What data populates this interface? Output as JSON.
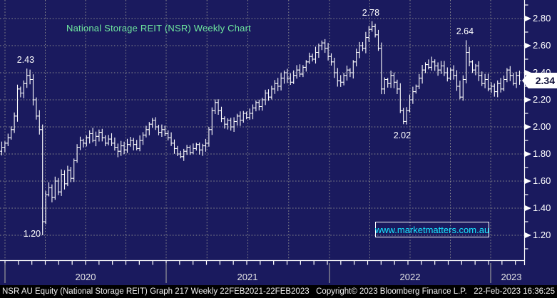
{
  "colors": {
    "background": "#1a1a5e",
    "grid": "#8f8f8f",
    "bars": "#ffffff",
    "title_green": "#6fe89f",
    "watermark_cyan": "#17e7ff",
    "axis_text": "#ffffff",
    "price_tag_bg": "#ffffff",
    "status_bar_bg": "#000000"
  },
  "watermark": {
    "text": "www.marketmatters.com.au"
  },
  "last_price_label": "2.34",
  "y_axis": {
    "major_labels": [
      "2.80",
      "2.60",
      "2.40",
      "2.20",
      "2.00",
      "1.80",
      "1.60",
      "1.40",
      "1.20"
    ]
  },
  "x_axis": {
    "year_labels": [
      "2020",
      "2021",
      "2022",
      "2023"
    ]
  },
  "status_bar": {
    "left": "NSR AU Equity (National Storage REIT) Graph 217  Weekly 22FEB2021-22FEB2023",
    "center": "Copyright© 2023 Bloomberg Finance L.P.",
    "right": "22-Feb-2023 16:36:25"
  },
  "chart_data": {
    "type": "bar",
    "subtype": "ohlc-weekly",
    "title": "National Storage REIT (NSR) Weekly Chart",
    "security": "NSR AU Equity",
    "frequency": "Weekly",
    "x_range": [
      "Dec 2019",
      "Feb 2023"
    ],
    "ylim": [
      1.0,
      2.95
    ],
    "grid": true,
    "y_gridlines": [
      2.8,
      2.6,
      2.4,
      2.2,
      2.0,
      1.8,
      1.6,
      1.4,
      1.2
    ],
    "y_minor_ticks": [
      2.9,
      2.7,
      2.5,
      2.3,
      2.1,
      1.9,
      1.7,
      1.5,
      1.3,
      1.1
    ],
    "last_price": 2.34,
    "weekly_closes": [
      1.85,
      1.88,
      1.92,
      1.98,
      2.08,
      2.28,
      2.25,
      2.32,
      2.38,
      2.35,
      2.2,
      2.08,
      1.98,
      1.3,
      1.5,
      1.55,
      1.48,
      1.6,
      1.52,
      1.65,
      1.58,
      1.68,
      1.62,
      1.75,
      1.85,
      1.9,
      1.88,
      1.92,
      1.95,
      1.9,
      1.93,
      1.96,
      1.92,
      1.88,
      1.91,
      1.88,
      1.85,
      1.82,
      1.86,
      1.83,
      1.87,
      1.9,
      1.87,
      1.84,
      1.9,
      1.94,
      1.98,
      2.02,
      2.05,
      2.0,
      1.96,
      1.98,
      1.95,
      1.92,
      1.88,
      1.84,
      1.8,
      1.78,
      1.82,
      1.85,
      1.81,
      1.84,
      1.87,
      1.83,
      1.86,
      1.88,
      1.98,
      2.12,
      2.18,
      2.12,
      2.06,
      2.02,
      2.05,
      2.0,
      2.04,
      2.08,
      2.05,
      2.1,
      2.07,
      2.1,
      2.14,
      2.18,
      2.15,
      2.2,
      2.25,
      2.22,
      2.28,
      2.32,
      2.3,
      2.36,
      2.4,
      2.36,
      2.33,
      2.38,
      2.42,
      2.39,
      2.44,
      2.48,
      2.52,
      2.5,
      2.55,
      2.6,
      2.62,
      2.58,
      2.52,
      2.48,
      2.4,
      2.34,
      2.33,
      2.38,
      2.42,
      2.4,
      2.48,
      2.55,
      2.6,
      2.58,
      2.66,
      2.72,
      2.74,
      2.68,
      2.58,
      2.28,
      2.35,
      2.32,
      2.38,
      2.33,
      2.28,
      2.12,
      2.04,
      2.12,
      2.2,
      2.26,
      2.3,
      2.36,
      2.42,
      2.46,
      2.44,
      2.48,
      2.45,
      2.42,
      2.45,
      2.4,
      2.36,
      2.42,
      2.38,
      2.3,
      2.22,
      2.35,
      2.55,
      2.48,
      2.42,
      2.45,
      2.38,
      2.32,
      2.35,
      2.28,
      2.3,
      2.26,
      2.32,
      2.28,
      2.35,
      2.42,
      2.38,
      2.32,
      2.38,
      2.34
    ],
    "annotations": [
      {
        "label": "2.43",
        "week": 8,
        "price": 2.43,
        "type": "high",
        "placement": "above"
      },
      {
        "label": "1.20",
        "week": 13,
        "price": 1.2,
        "type": "low",
        "placement": "left"
      },
      {
        "label": "2.78",
        "week": 118,
        "price": 2.78,
        "type": "high",
        "placement": "above"
      },
      {
        "label": "2.02",
        "week": 128,
        "price": 2.02,
        "type": "low",
        "placement": "below"
      },
      {
        "label": "2.64",
        "week": 148,
        "price": 2.64,
        "type": "high",
        "placement": "above"
      }
    ]
  }
}
